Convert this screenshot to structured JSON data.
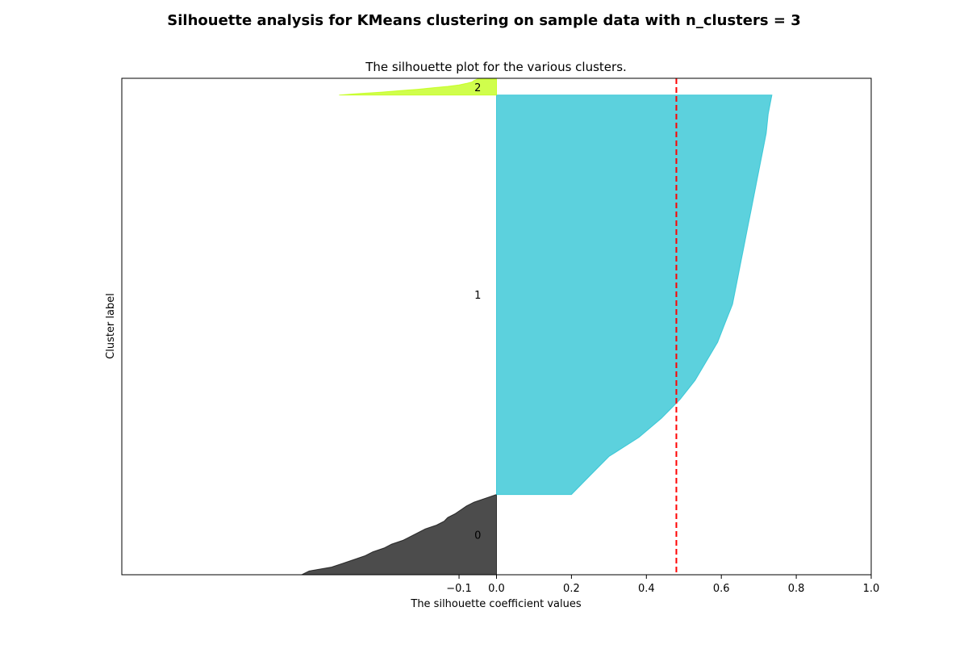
{
  "figure": {
    "suptitle": "Silhouette analysis for KMeans clustering on sample data with n_clusters = 3"
  },
  "chart_data": {
    "type": "area",
    "title": "The silhouette plot for the various clusters.",
    "xlabel": "The silhouette coefficient values",
    "ylabel": "Cluster label",
    "xlim": [
      -1.0,
      1.0
    ],
    "ylim": [
      0,
      133
    ],
    "xticks": [
      -0.1,
      0.0,
      0.2,
      0.4,
      0.6,
      0.8,
      1.0
    ],
    "xtick_labels": [
      "−0.1",
      "0.0",
      "0.2",
      "0.4",
      "0.6",
      "0.8",
      "1.0"
    ],
    "yticks": [],
    "grid": false,
    "average_silhouette_score": 0.48,
    "average_line_style": "red dashed vertical line",
    "clusters": [
      {
        "label": "0",
        "color": "#000000",
        "y_lower": 0,
        "y_upper": 21.5,
        "values": [
          -0.52,
          -0.5,
          -0.44,
          -0.41,
          -0.38,
          -0.35,
          -0.33,
          -0.3,
          -0.28,
          -0.25,
          -0.23,
          -0.21,
          -0.19,
          -0.16,
          -0.14,
          -0.13,
          -0.11,
          -0.095,
          -0.08,
          -0.06,
          -0.03,
          0.0
        ]
      },
      {
        "label": "1",
        "color": "#17becf",
        "y_lower": 21.5,
        "y_upper": 128.5,
        "values": [
          0.2,
          0.25,
          0.3,
          0.38,
          0.44,
          0.49,
          0.53,
          0.56,
          0.59,
          0.61,
          0.63,
          0.64,
          0.65,
          0.66,
          0.67,
          0.68,
          0.69,
          0.7,
          0.71,
          0.72,
          0.725,
          0.735
        ]
      },
      {
        "label": "2",
        "color": "#bcfd00",
        "y_lower": 128.5,
        "y_upper": 132.8,
        "values": [
          -0.42,
          -0.37,
          -0.31,
          -0.26,
          -0.21,
          -0.17,
          -0.13,
          -0.1,
          -0.08,
          -0.065,
          -0.06,
          -0.05
        ]
      }
    ]
  }
}
